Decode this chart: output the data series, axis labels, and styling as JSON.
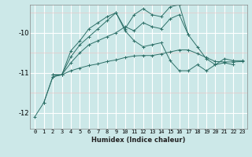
{
  "xlabel": "Humidex (Indice chaleur)",
  "bg_color": "#cce8e8",
  "grid_major_color": "#ffffff",
  "grid_minor_color": "#e8c8c8",
  "line_color": "#2d7068",
  "x_ticks": [
    0,
    1,
    2,
    3,
    4,
    5,
    6,
    7,
    8,
    9,
    10,
    11,
    12,
    13,
    14,
    15,
    16,
    17,
    18,
    19,
    20,
    21,
    22,
    23
  ],
  "ylim": [
    -12.4,
    -9.3
  ],
  "yticks": [
    -12,
    -11,
    -10
  ],
  "series": [
    [
      null,
      -11.75,
      -11.1,
      -11.05,
      -10.75,
      -10.5,
      -10.3,
      -10.2,
      -10.1,
      -10.0,
      -9.85,
      -9.95,
      -9.75,
      -9.85,
      -9.9,
      -9.65,
      -9.55,
      -10.05,
      -10.35,
      -10.65,
      -10.8,
      -10.65,
      -10.7,
      -10.7
    ],
    [
      null,
      null,
      -11.05,
      -11.05,
      -10.95,
      -10.88,
      -10.82,
      -10.78,
      -10.72,
      -10.68,
      -10.62,
      -10.58,
      -10.57,
      -10.57,
      -10.53,
      -10.48,
      -10.43,
      -10.43,
      -10.52,
      -10.62,
      -10.72,
      -10.73,
      -10.73,
      -10.72
    ],
    [
      null,
      null,
      -11.05,
      -11.05,
      -10.6,
      -10.3,
      -10.1,
      -9.9,
      -9.7,
      -9.5,
      -9.95,
      -10.2,
      -10.35,
      -10.3,
      -10.25,
      -10.7,
      -10.95,
      -10.95,
      -10.8,
      -10.95,
      -10.8,
      -10.75,
      -10.8,
      null
    ],
    [
      -12.1,
      -11.75,
      -11.1,
      -11.05,
      -10.45,
      -10.2,
      -9.9,
      -9.75,
      -9.6,
      -9.5,
      -9.9,
      -9.55,
      -9.4,
      -9.55,
      -9.6,
      -9.35,
      -9.3,
      -10.05,
      null,
      null,
      null,
      null,
      null,
      null
    ]
  ]
}
